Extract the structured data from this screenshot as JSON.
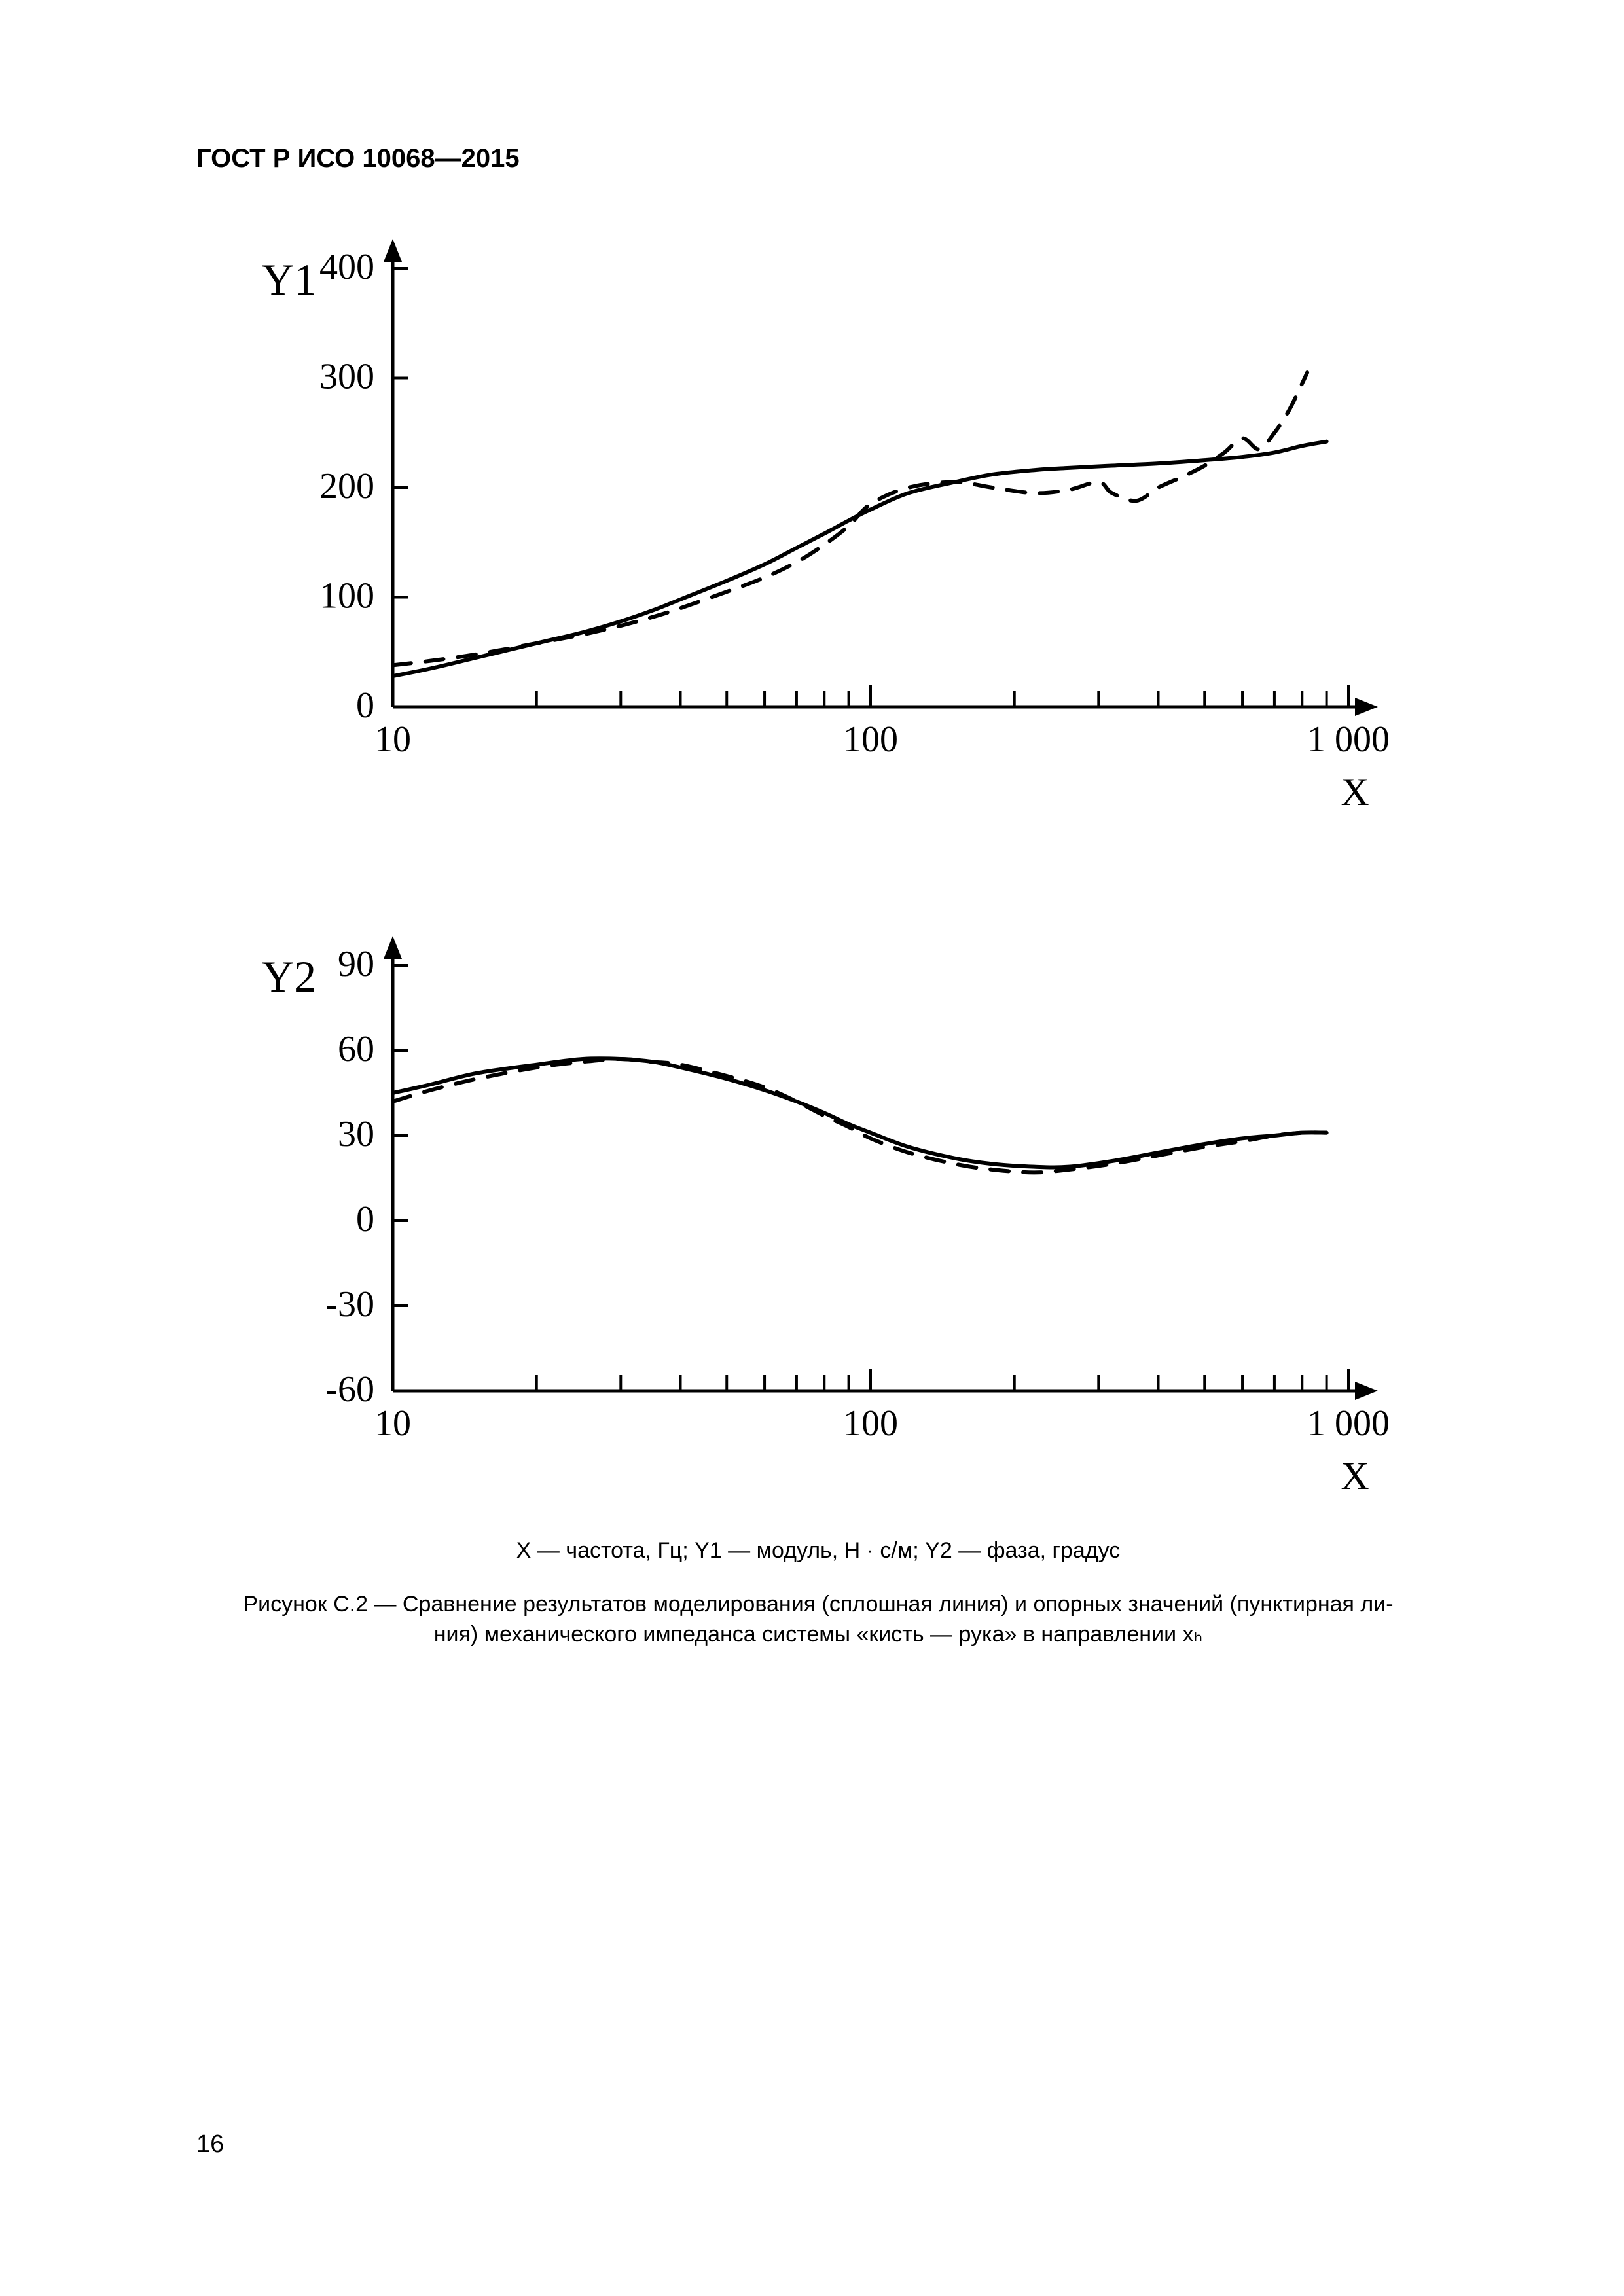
{
  "document": {
    "header": "ГОСТ Р ИСО 10068—2015",
    "page_number": "16"
  },
  "figure": {
    "axis_legend": "X — частота, Гц; Y1 — модуль, Н · с/м; Y2 — фаза, градус",
    "caption_line1": "Рисунок C.2 — Сравнение результатов моделирования (сплошная линия) и опорных значений (пунктирная ли-",
    "caption_line2": "ния) механического импеданса системы «кисть — рука» в направлении xₕ"
  },
  "chart_top": {
    "type": "line",
    "y_label": "Y1",
    "x_label": "X",
    "xlim": [
      10,
      1000
    ],
    "ylim": [
      0,
      400
    ],
    "x_scale": "log",
    "y_ticks": [
      0,
      100,
      200,
      300,
      400
    ],
    "x_major_ticks": [
      10,
      100,
      1000
    ],
    "x_minor_ticks": [
      20,
      30,
      40,
      50,
      60,
      70,
      80,
      90,
      200,
      300,
      400,
      500,
      600,
      700,
      800,
      900
    ],
    "axis_color": "#000000",
    "line_width_solid": 6,
    "line_width_dashed": 6,
    "dash_pattern": "28 22",
    "background_color": "#ffffff",
    "tick_fontsize": 48,
    "label_fontsize": 68,
    "series_solid": {
      "color": "#000000",
      "points": [
        [
          10,
          28
        ],
        [
          12,
          35
        ],
        [
          15,
          45
        ],
        [
          20,
          58
        ],
        [
          25,
          68
        ],
        [
          30,
          78
        ],
        [
          35,
          88
        ],
        [
          40,
          98
        ],
        [
          50,
          115
        ],
        [
          60,
          130
        ],
        [
          70,
          145
        ],
        [
          80,
          158
        ],
        [
          90,
          170
        ],
        [
          100,
          180
        ],
        [
          120,
          195
        ],
        [
          150,
          205
        ],
        [
          180,
          212
        ],
        [
          220,
          216
        ],
        [
          260,
          218
        ],
        [
          320,
          220
        ],
        [
          400,
          222
        ],
        [
          500,
          225
        ],
        [
          600,
          228
        ],
        [
          700,
          232
        ],
        [
          800,
          238
        ],
        [
          900,
          242
        ]
      ]
    },
    "series_dashed": {
      "color": "#000000",
      "points": [
        [
          10,
          38
        ],
        [
          12,
          42
        ],
        [
          15,
          48
        ],
        [
          20,
          58
        ],
        [
          25,
          66
        ],
        [
          30,
          74
        ],
        [
          35,
          82
        ],
        [
          40,
          90
        ],
        [
          50,
          105
        ],
        [
          60,
          118
        ],
        [
          70,
          132
        ],
        [
          80,
          148
        ],
        [
          90,
          165
        ],
        [
          100,
          185
        ],
        [
          120,
          200
        ],
        [
          150,
          205
        ],
        [
          180,
          200
        ],
        [
          220,
          195
        ],
        [
          260,
          198
        ],
        [
          300,
          205
        ],
        [
          320,
          195
        ],
        [
          360,
          188
        ],
        [
          400,
          200
        ],
        [
          450,
          210
        ],
        [
          500,
          220
        ],
        [
          550,
          232
        ],
        [
          600,
          245
        ],
        [
          650,
          235
        ],
        [
          700,
          250
        ],
        [
          750,
          270
        ],
        [
          800,
          295
        ],
        [
          820,
          305
        ]
      ]
    }
  },
  "chart_bottom": {
    "type": "line",
    "y_label": "Y2",
    "x_label": "X",
    "xlim": [
      10,
      1000
    ],
    "ylim": [
      -60,
      90
    ],
    "x_scale": "log",
    "y_ticks": [
      -60,
      -30,
      0,
      30,
      60,
      90
    ],
    "x_major_ticks": [
      10,
      100,
      1000
    ],
    "x_minor_ticks": [
      20,
      30,
      40,
      50,
      60,
      70,
      80,
      90,
      200,
      300,
      400,
      500,
      600,
      700,
      800,
      900
    ],
    "axis_color": "#000000",
    "line_width_solid": 6,
    "line_width_dashed": 6,
    "dash_pattern": "28 22",
    "background_color": "#ffffff",
    "tick_fontsize": 48,
    "label_fontsize": 68,
    "series_solid": {
      "color": "#000000",
      "points": [
        [
          10,
          45
        ],
        [
          12,
          48
        ],
        [
          15,
          52
        ],
        [
          20,
          55
        ],
        [
          25,
          57
        ],
        [
          30,
          57
        ],
        [
          35,
          56
        ],
        [
          40,
          54
        ],
        [
          50,
          50
        ],
        [
          60,
          46
        ],
        [
          70,
          42
        ],
        [
          80,
          38
        ],
        [
          90,
          34
        ],
        [
          100,
          31
        ],
        [
          120,
          26
        ],
        [
          150,
          22
        ],
        [
          180,
          20
        ],
        [
          220,
          19
        ],
        [
          260,
          19
        ],
        [
          320,
          21
        ],
        [
          400,
          24
        ],
        [
          500,
          27
        ],
        [
          600,
          29
        ],
        [
          700,
          30
        ],
        [
          800,
          31
        ],
        [
          900,
          31
        ]
      ]
    },
    "series_dashed": {
      "color": "#000000",
      "points": [
        [
          10,
          42
        ],
        [
          12,
          46
        ],
        [
          15,
          50
        ],
        [
          20,
          54
        ],
        [
          25,
          56
        ],
        [
          30,
          57
        ],
        [
          35,
          56
        ],
        [
          40,
          55
        ],
        [
          50,
          51
        ],
        [
          60,
          47
        ],
        [
          70,
          42
        ],
        [
          80,
          37
        ],
        [
          90,
          33
        ],
        [
          100,
          29
        ],
        [
          120,
          24
        ],
        [
          150,
          20
        ],
        [
          180,
          18
        ],
        [
          220,
          17
        ],
        [
          260,
          18
        ],
        [
          320,
          20
        ],
        [
          400,
          23
        ],
        [
          500,
          26
        ],
        [
          600,
          28
        ],
        [
          700,
          30
        ],
        [
          800,
          31
        ],
        [
          900,
          31
        ]
      ]
    }
  }
}
